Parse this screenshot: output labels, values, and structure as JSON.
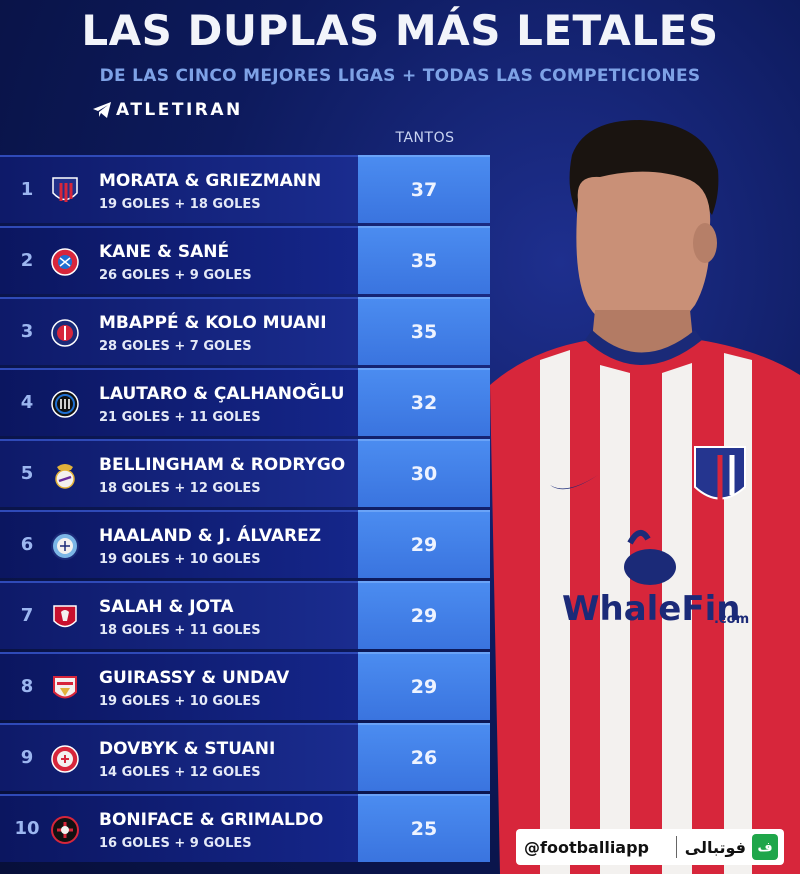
{
  "header": {
    "title": "LAS DUPLAS MÁS LETALES",
    "subtitle": "DE LAS CINCO MEJORES LIGAS + TODAS LAS COMPETICIONES",
    "brand": "ATLETIRAN"
  },
  "table": {
    "column_header": "TANTOS",
    "rows": [
      {
        "rank": "1",
        "crest": "atletico-madrid-crest",
        "names": "MORATA & GRIEZMANN",
        "goals": "19 GOLES + 18 GOLES",
        "total": "37"
      },
      {
        "rank": "2",
        "crest": "bayern-munich-crest",
        "names": "KANE & SANÉ",
        "goals": "26 GOLES + 9 GOLES",
        "total": "35"
      },
      {
        "rank": "3",
        "crest": "psg-crest",
        "names": "MBAPPÉ & KOLO MUANI",
        "goals": "28 GOLES + 7 GOLES",
        "total": "35"
      },
      {
        "rank": "4",
        "crest": "inter-crest",
        "names": "LAUTARO & ÇALHANOĞLU",
        "goals": "21 GOLES + 11 GOLES",
        "total": "32"
      },
      {
        "rank": "5",
        "crest": "real-madrid-crest",
        "names": "BELLINGHAM & RODRYGO",
        "goals": "18 GOLES + 12 GOLES",
        "total": "30"
      },
      {
        "rank": "6",
        "crest": "manchester-city-crest",
        "names": "HAALAND & J. ÁLVAREZ",
        "goals": "19 GOLES + 10 GOLES",
        "total": "29"
      },
      {
        "rank": "7",
        "crest": "liverpool-crest",
        "names": "SALAH & JOTA",
        "goals": "18 GOLES + 11 GOLES",
        "total": "29"
      },
      {
        "rank": "8",
        "crest": "stuttgart-crest",
        "names": "GUIRASSY & UNDAV",
        "goals": "19 GOLES + 10 GOLES",
        "total": "29"
      },
      {
        "rank": "9",
        "crest": "girona-crest",
        "names": "DOVBYK & STUANI",
        "goals": "14 GOLES + 12 GOLES",
        "total": "26"
      },
      {
        "rank": "10",
        "crest": "leverkusen-crest",
        "names": "BONIFACE & GRIMALDO",
        "goals": "16 GOLES + 9 GOLES",
        "total": "25"
      }
    ]
  },
  "watermark": {
    "handle": "@footballiapp",
    "arabic": "فوتبالی",
    "logo_glyph": "ف"
  },
  "colors": {
    "background": "#0d1a5c",
    "total_cell": "#4b8cf0",
    "subtitle": "#7ea2e6"
  }
}
